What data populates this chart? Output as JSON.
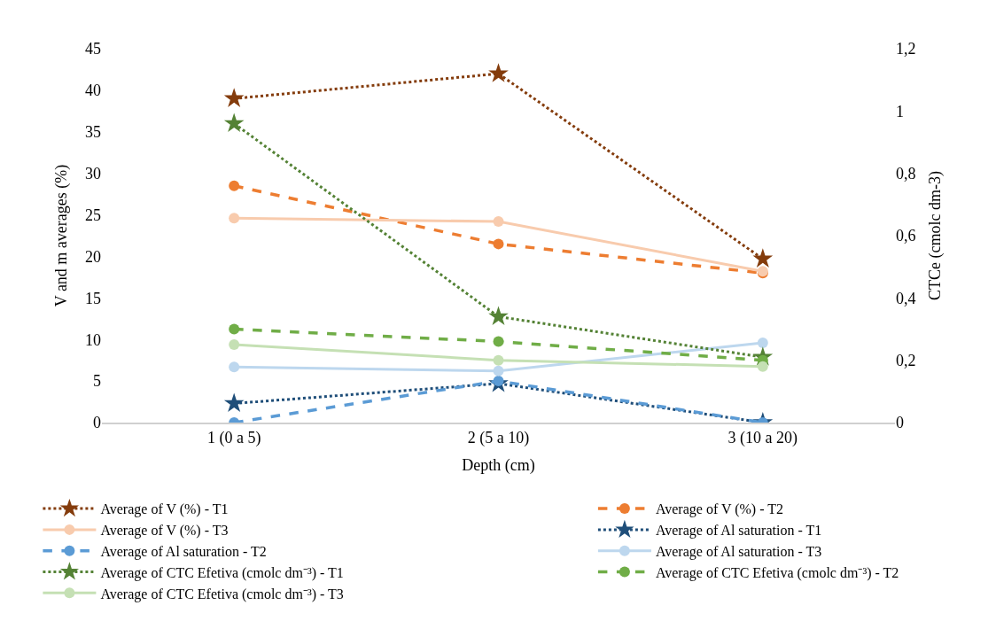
{
  "chart_data": {
    "type": "line",
    "xlabel": "Depth (cm)",
    "ylabel": "V and m averages (%)",
    "y2label": "CTCe (cmolc dm-3)",
    "categories": [
      "1 (0 a 5)",
      "2 (5 a 10)",
      "3 (10 a 20)"
    ],
    "ylim": [
      0,
      45
    ],
    "yticks": [
      0,
      5,
      10,
      15,
      20,
      25,
      30,
      35,
      40,
      45
    ],
    "y2lim": [
      0,
      1.2
    ],
    "y2ticks": [
      0,
      {
        "value": 0.2,
        "label": "0,2"
      },
      {
        "value": 0.4,
        "label": "0,4"
      },
      {
        "value": 0.6,
        "label": "0,6"
      },
      {
        "value": 0.8,
        "label": "0,8"
      },
      1,
      {
        "value": 1.2,
        "label": "1,2"
      }
    ],
    "grid": false,
    "legend": "bottom",
    "series": [
      {
        "name": "Average of V (%) - T1",
        "color": "#843c0c",
        "values": [
          39,
          42,
          19.7
        ],
        "marker": "star",
        "line_style": "dotted"
      },
      {
        "name": "Average of V (%) - T2",
        "color": "#ed7d31",
        "values": [
          28.5,
          21.5,
          18
        ],
        "marker": "circle",
        "line_style": "dashed"
      },
      {
        "name": "Average of V (%) - T3",
        "color": "#f8cbad",
        "values": [
          24.6,
          24.2,
          18.2
        ],
        "marker": "circle",
        "line_style": "solid"
      },
      {
        "name": "Average of Al saturation - T1",
        "color": "#1f4e79",
        "values": [
          2.3,
          4.7,
          0
        ],
        "marker": "star",
        "line_style": "dotted"
      },
      {
        "name": "Average of Al saturation - T2",
        "color": "#5b9bd5",
        "values": [
          0,
          5,
          0
        ],
        "marker": "circle",
        "line_style": "dashed"
      },
      {
        "name": "Average of Al saturation - T3",
        "color": "#bdd7ee",
        "values": [
          6.7,
          6.2,
          9.6
        ],
        "marker": "circle",
        "line_style": "solid"
      },
      {
        "name": "Average of CTC Efetiva (cmolc dm⁻³) - T1",
        "color": "#548235",
        "values": [
          0.96,
          0.34,
          0.21
        ],
        "marker": "star",
        "line_style": "dotted",
        "axis": "y2"
      },
      {
        "name": "Average of CTC Efetiva (cmolc dm⁻³) - T2",
        "color": "#70ad47",
        "values": [
          0.3,
          0.26,
          0.2
        ],
        "marker": "circle",
        "line_style": "dashed",
        "axis": "y2"
      },
      {
        "name": "Average of CTC Efetiva (cmolc dm⁻³) - T3",
        "color": "#c5e0b4",
        "values": [
          0.25,
          0.2,
          0.18
        ],
        "marker": "circle",
        "line_style": "solid",
        "axis": "y2"
      }
    ]
  }
}
